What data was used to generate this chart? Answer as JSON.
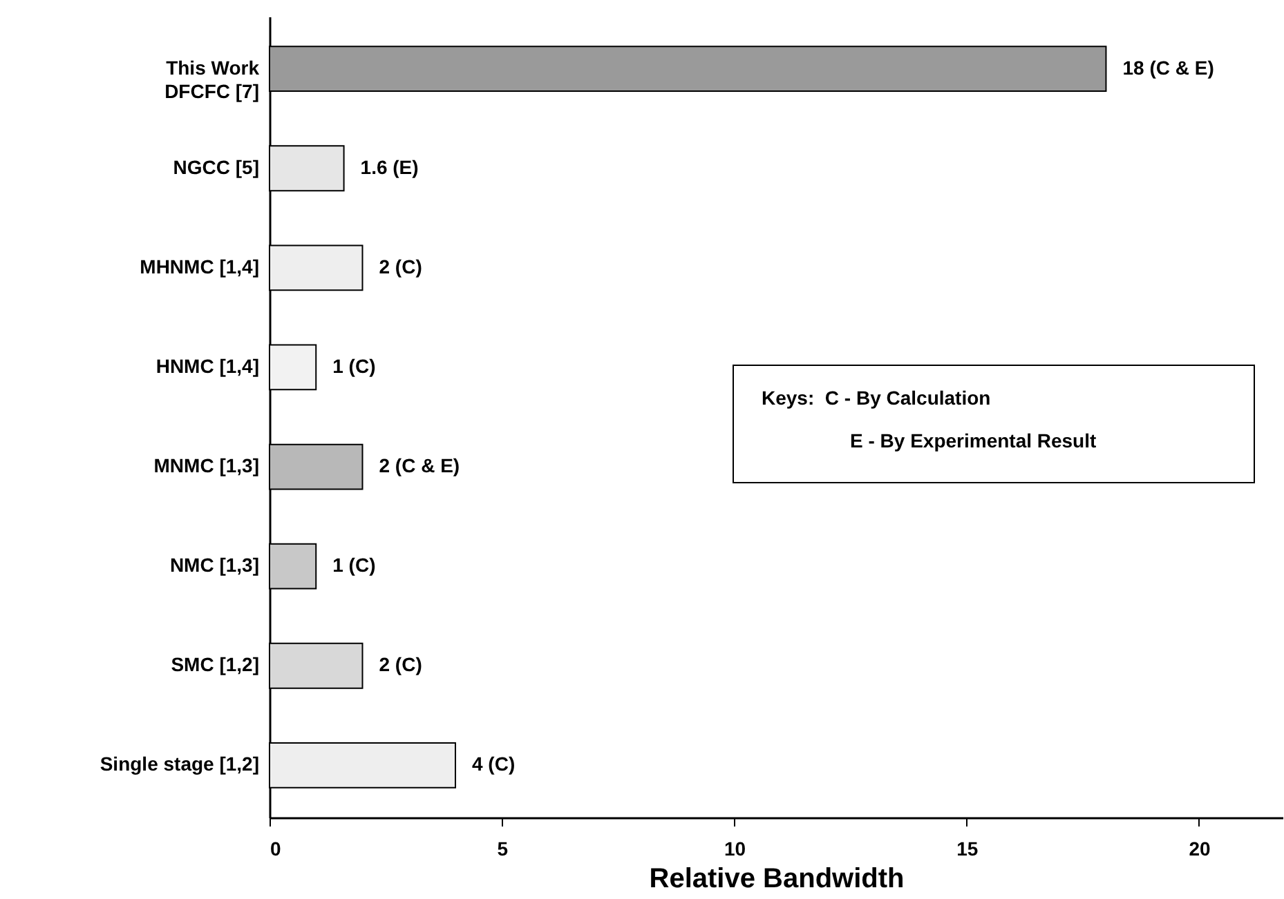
{
  "chart_data": {
    "type": "bar",
    "orientation": "horizontal",
    "xlabel": "Relative Bandwidth",
    "categories": [
      "This Work\nDFCFC [7]",
      "NGCC [5]",
      "MHNMC [1,4]",
      "HNMC [1,4]",
      "MNMC [1,3]",
      "NMC [1,3]",
      "SMC [1,2]",
      "Single stage [1,2]"
    ],
    "values": [
      18,
      1.6,
      2,
      1,
      2,
      1,
      2,
      4
    ],
    "value_labels": [
      "18 (C & E)",
      "1.6 (E)",
      "2 (C)",
      "1 (C)",
      "2 (C & E)",
      "1 (C)",
      "2 (C)",
      "4 (C)"
    ],
    "colors": [
      "#9a9a9a",
      "#e6e6e6",
      "#eeeeee",
      "#f2f2f2",
      "#b8b8b8",
      "#c8c8c8",
      "#d8d8d8",
      "#eeeeee"
    ],
    "xlim": [
      0,
      21.8
    ],
    "xticks": [
      0,
      5,
      10,
      15,
      20
    ],
    "grid": false,
    "annotations": [
      "Keys:  C - By Calculation",
      "E - By Experimental Result"
    ]
  }
}
